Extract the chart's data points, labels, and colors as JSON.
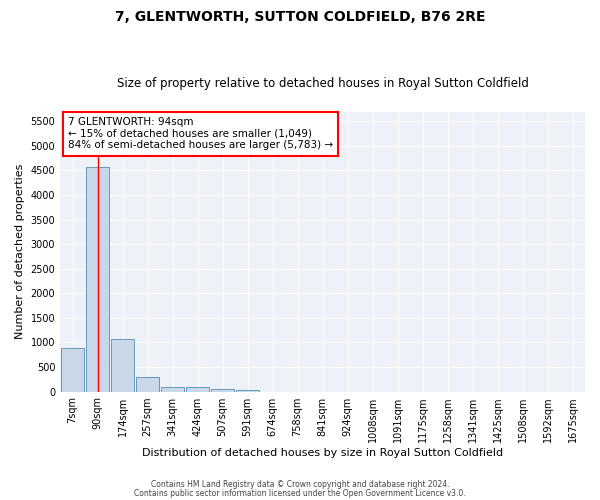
{
  "title": "7, GLENTWORTH, SUTTON COLDFIELD, B76 2RE",
  "subtitle": "Size of property relative to detached houses in Royal Sutton Coldfield",
  "xlabel": "Distribution of detached houses by size in Royal Sutton Coldfield",
  "ylabel": "Number of detached properties",
  "footnote1": "Contains HM Land Registry data © Crown copyright and database right 2024.",
  "footnote2": "Contains public sector information licensed under the Open Government Licence v3.0.",
  "bar_labels": [
    "7sqm",
    "90sqm",
    "174sqm",
    "257sqm",
    "341sqm",
    "424sqm",
    "507sqm",
    "591sqm",
    "674sqm",
    "758sqm",
    "841sqm",
    "924sqm",
    "1008sqm",
    "1091sqm",
    "1175sqm",
    "1258sqm",
    "1341sqm",
    "1425sqm",
    "1508sqm",
    "1592sqm",
    "1675sqm"
  ],
  "bar_values": [
    880,
    4580,
    1060,
    290,
    100,
    90,
    55,
    40,
    0,
    0,
    0,
    0,
    0,
    0,
    0,
    0,
    0,
    0,
    0,
    0,
    0
  ],
  "bar_color": "#c8d8e8",
  "bar_edge_color": "#6699bb",
  "ylim_max": 5700,
  "yticks": [
    0,
    500,
    1000,
    1500,
    2000,
    2500,
    3000,
    3500,
    4000,
    4500,
    5000,
    5500
  ],
  "annotation_line1": "7 GLENTWORTH: 94sqm",
  "annotation_line2": "← 15% of detached houses are smaller (1,049)",
  "annotation_line3": "84% of semi-detached houses are larger (5,783) →",
  "bg_color": "#eef2f8",
  "grid_color": "#ffffff",
  "red_line_x": 1.0,
  "title_fontsize": 10,
  "subtitle_fontsize": 8.5,
  "tick_fontsize": 7,
  "ylabel_fontsize": 8,
  "xlabel_fontsize": 8,
  "annot_fontsize": 7.5,
  "footnote_fontsize": 5.5
}
